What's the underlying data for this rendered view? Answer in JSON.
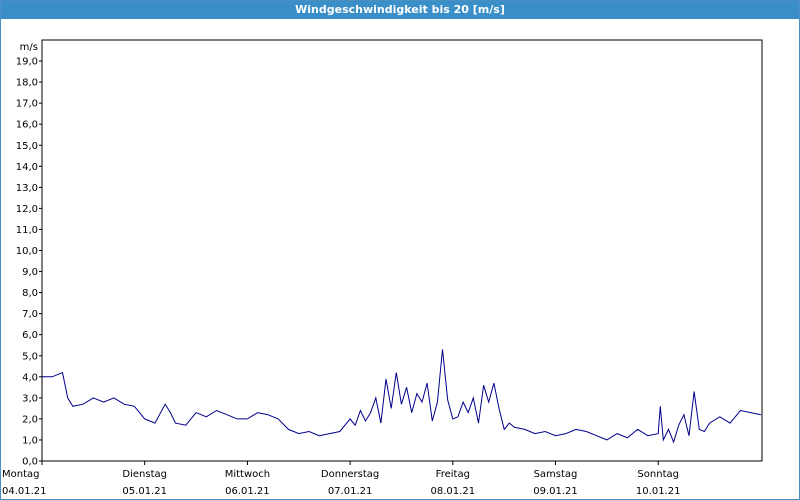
{
  "window": {
    "title": "Windgeschwindigkeit bis 20 [m/s]"
  },
  "chart_data": {
    "type": "line",
    "title": "Windgeschwindigkeit bis 20 [m/s]",
    "ylabel": "m/s",
    "xlabel": "",
    "ylim": [
      0,
      20
    ],
    "xlim": [
      0,
      7
    ],
    "grid": true,
    "y_ticks": [
      "0,0",
      "1,0",
      "2,0",
      "3,0",
      "4,0",
      "5,0",
      "6,0",
      "7,0",
      "8,0",
      "9,0",
      "10,0",
      "11,0",
      "12,0",
      "13,0",
      "14,0",
      "15,0",
      "16,0",
      "17,0",
      "18,0",
      "19,0"
    ],
    "x_ticks": [
      {
        "day": "Montag",
        "date": "04.01.21"
      },
      {
        "day": "Dienstag",
        "date": "05.01.21"
      },
      {
        "day": "Mittwoch",
        "date": "06.01.21"
      },
      {
        "day": "Donnerstag",
        "date": "07.01.21"
      },
      {
        "day": "Freitag",
        "date": "08.01.21"
      },
      {
        "day": "Samstag",
        "date": "09.01.21"
      },
      {
        "day": "Sonntag",
        "date": "10.01.21"
      }
    ],
    "line_color": "#00008b",
    "series": [
      {
        "x": [
          0,
          0.1,
          0.2,
          0.25,
          0.3,
          0.4,
          0.5,
          0.6,
          0.7,
          0.8,
          0.9,
          1.0,
          1.1,
          1.2,
          1.25,
          1.3,
          1.4,
          1.5,
          1.6,
          1.7,
          1.8,
          1.9,
          2.0,
          2.1,
          2.2,
          2.3,
          2.4,
          2.5,
          2.6,
          2.7,
          2.8,
          2.9,
          3.0,
          3.05,
          3.1,
          3.15,
          3.2,
          3.25,
          3.3,
          3.35,
          3.4,
          3.45,
          3.5,
          3.55,
          3.6,
          3.65,
          3.7,
          3.75,
          3.8,
          3.85,
          3.9,
          3.95,
          4.0,
          4.05,
          4.1,
          4.15,
          4.2,
          4.25,
          4.3,
          4.35,
          4.4,
          4.45,
          4.5,
          4.55,
          4.6,
          4.7,
          4.8,
          4.9,
          5.0,
          5.1,
          5.2,
          5.3,
          5.4,
          5.5,
          5.6,
          5.7,
          5.8,
          5.9,
          6.0,
          6.02,
          6.05,
          6.1,
          6.15,
          6.2,
          6.25,
          6.3,
          6.35,
          6.4,
          6.45,
          6.5,
          6.6,
          6.7,
          6.8,
          6.9,
          7.0
        ],
        "values": [
          4.0,
          4.0,
          4.2,
          3.0,
          2.6,
          2.7,
          3.0,
          2.8,
          3.0,
          2.7,
          2.6,
          2.0,
          1.8,
          2.7,
          2.3,
          1.8,
          1.7,
          2.3,
          2.1,
          2.4,
          2.2,
          2.0,
          2.0,
          2.3,
          2.2,
          2.0,
          1.5,
          1.3,
          1.4,
          1.2,
          1.3,
          1.4,
          2.0,
          1.7,
          2.4,
          1.9,
          2.3,
          3.0,
          1.8,
          3.9,
          2.5,
          4.2,
          2.7,
          3.5,
          2.3,
          3.2,
          2.8,
          3.7,
          1.9,
          2.8,
          5.3,
          2.9,
          2.0,
          2.1,
          2.8,
          2.3,
          3.0,
          1.8,
          3.6,
          2.8,
          3.7,
          2.5,
          1.5,
          1.8,
          1.6,
          1.5,
          1.3,
          1.4,
          1.2,
          1.3,
          1.5,
          1.4,
          1.2,
          1.0,
          1.3,
          1.1,
          1.5,
          1.2,
          1.3,
          2.6,
          1.0,
          1.5,
          0.9,
          1.7,
          2.2,
          1.2,
          3.3,
          1.5,
          1.4,
          1.8,
          2.1,
          1.8,
          2.4,
          2.3,
          2.2
        ]
      }
    ]
  }
}
